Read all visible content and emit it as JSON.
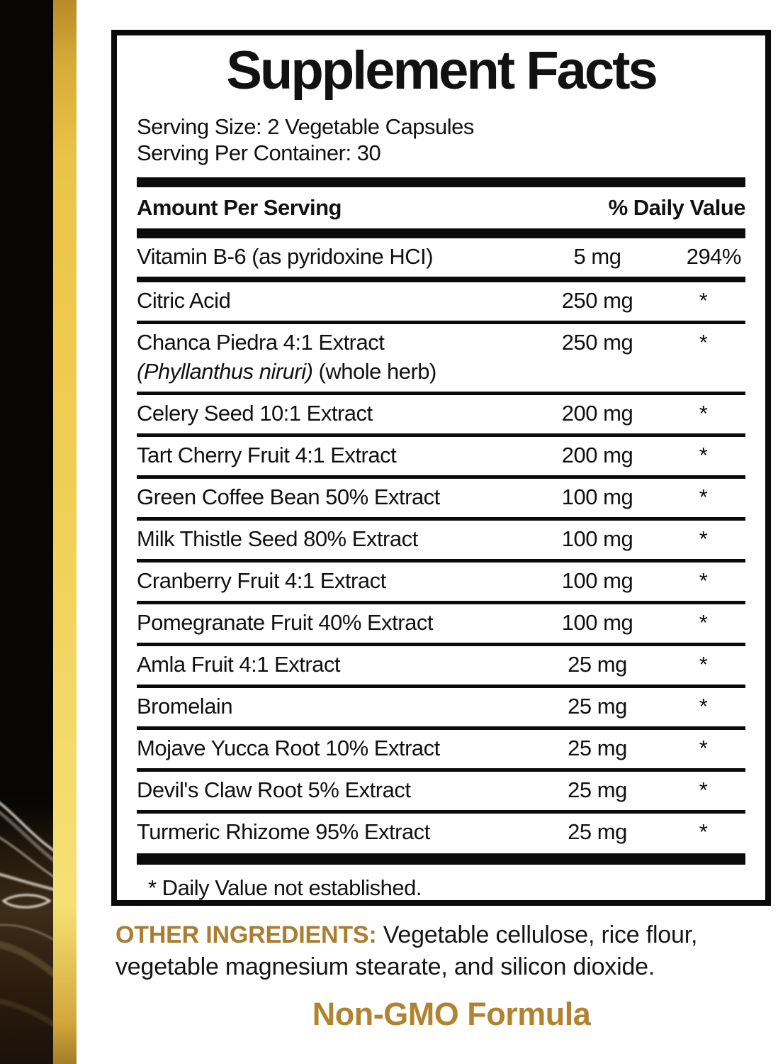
{
  "colors": {
    "gold_accent": "#AA7D32",
    "non_gmo_gold": "#B1832F",
    "gold_strip_light": "#F0D058",
    "gold_strip_dark": "#B78B28",
    "rule_black": "#0B0B0B"
  },
  "panel": {
    "title": "Supplement Facts",
    "serving_size": "Serving Size: 2 Vegetable Capsules",
    "serving_per_container": "Serving Per Container: 30",
    "footnote": "* Daily Value not established."
  },
  "table": {
    "header": {
      "amount_label": "Amount Per Serving",
      "dv_label": "% Daily Value"
    },
    "rows": [
      {
        "name": "Vitamin B-6 (as pyridoxine HCI)",
        "amount": "5 mg",
        "dv": "294%"
      },
      {
        "name": "Citric Acid",
        "amount": "250 mg",
        "dv": "*"
      },
      {
        "name": "Chanca Piedra 4:1 Extract",
        "sub_italic": "(Phyllanthus niruri)",
        "sub_suffix": " (whole herb)",
        "amount": "250 mg",
        "dv": "*"
      },
      {
        "name": "Celery Seed 10:1 Extract",
        "amount": "200 mg",
        "dv": "*"
      },
      {
        "name": "Tart Cherry Fruit 4:1 Extract",
        "amount": "200 mg",
        "dv": "*"
      },
      {
        "name": "Green Coffee Bean 50% Extract",
        "amount": "100 mg",
        "dv": "*"
      },
      {
        "name": "Milk Thistle Seed 80% Extract",
        "amount": "100 mg",
        "dv": "*"
      },
      {
        "name": "Cranberry Fruit 4:1 Extract",
        "amount": "100 mg",
        "dv": "*"
      },
      {
        "name": "Pomegranate Fruit 40% Extract",
        "amount": "100 mg",
        "dv": "*"
      },
      {
        "name": "Amla Fruit 4:1 Extract",
        "amount": "25 mg",
        "dv": "*"
      },
      {
        "name": "Bromelain",
        "amount": "25 mg",
        "dv": "*"
      },
      {
        "name": "Mojave Yucca Root 10% Extract",
        "amount": "25 mg",
        "dv": "*"
      },
      {
        "name": "Devil's Claw Root 5% Extract",
        "amount": "25 mg",
        "dv": "*"
      },
      {
        "name": "Turmeric Rhizome 95% Extract",
        "amount": "25 mg",
        "dv": "*"
      }
    ]
  },
  "other_ingredients": {
    "label": "OTHER INGREDIENTS: ",
    "text": "Vegetable cellulose, rice flour, vegetable magnesium stearate, and silicon dioxide."
  },
  "non_gmo": {
    "text": "Non-GMO Formula"
  }
}
